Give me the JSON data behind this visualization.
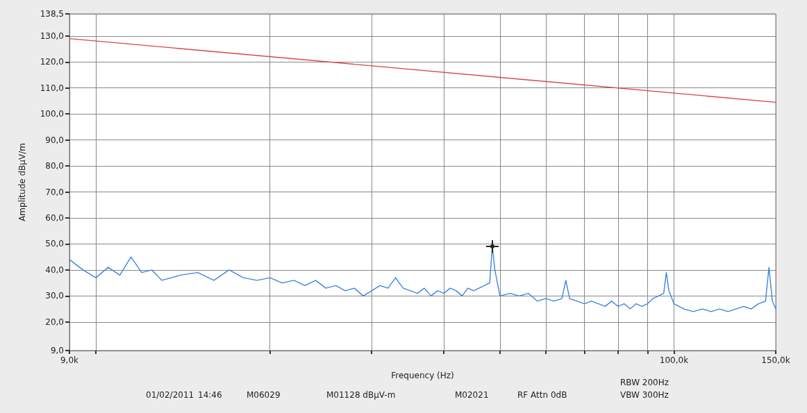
{
  "chart_data": {
    "type": "line",
    "xlabel": "Frequency (Hz)",
    "ylabel": "Amplitude dBµV/m",
    "log": "x",
    "grid": true,
    "marker": "none",
    "line_style": "solid",
    "xlim": [
      9000,
      150000
    ],
    "xticks": [
      {
        "value": 9000,
        "label": "9,0k"
      },
      {
        "value": 10000,
        "label": null
      },
      {
        "value": 20000,
        "label": null
      },
      {
        "value": 30000,
        "label": null
      },
      {
        "value": 40000,
        "label": null
      },
      {
        "value": 50000,
        "label": null
      },
      {
        "value": 60000,
        "label": null
      },
      {
        "value": 70000,
        "label": null
      },
      {
        "value": 80000,
        "label": null
      },
      {
        "value": 90000,
        "label": null
      },
      {
        "value": 100000,
        "label": "100,0k"
      },
      {
        "value": 150000,
        "label": "150,0k"
      }
    ],
    "ylim": [
      9,
      138.5
    ],
    "yticks": [
      {
        "value": 9,
        "label": "9,0"
      },
      {
        "value": 20,
        "label": "20,0"
      },
      {
        "value": 30,
        "label": "30,0"
      },
      {
        "value": 40,
        "label": "40,0"
      },
      {
        "value": 50,
        "label": "50,0"
      },
      {
        "value": 60,
        "label": "60,0"
      },
      {
        "value": 70,
        "label": "70,0"
      },
      {
        "value": 80,
        "label": "80,0"
      },
      {
        "value": 90,
        "label": "90,0"
      },
      {
        "value": 100,
        "label": "100,0"
      },
      {
        "value": 110,
        "label": "110,0"
      },
      {
        "value": 120,
        "label": "120,0"
      },
      {
        "value": 130,
        "label": "130,0"
      },
      {
        "value": 138.5,
        "label": "138,5"
      }
    ],
    "annotations": [
      "RBW 200Hz",
      "01/02/2011",
      "14:46",
      "M06029",
      "M01128 dBµV-m",
      "M02021",
      "RF Attn 0dB",
      "VBW 300Hz"
    ],
    "series": [
      {
        "color": "#d9464a",
        "x": [
          9000,
          150000
        ],
        "values": [
          129,
          104.5
        ]
      },
      {
        "color": "#3d85e0",
        "x": [
          9000,
          9500,
          10000,
          10500,
          11000,
          11500,
          12000,
          12500,
          13000,
          14000,
          15000,
          16000,
          17000,
          18000,
          19000,
          20000,
          21000,
          22000,
          23000,
          24000,
          25000,
          26000,
          27000,
          28000,
          29000,
          30000,
          31000,
          32000,
          33000,
          34000,
          35000,
          36000,
          37000,
          38000,
          39000,
          40000,
          41000,
          42000,
          43000,
          44000,
          45000,
          46000,
          47000,
          48000,
          48500,
          49000,
          50000,
          52000,
          54000,
          56000,
          58000,
          60000,
          62000,
          64000,
          65000,
          66000,
          68000,
          70000,
          72000,
          74000,
          76000,
          78000,
          80000,
          82000,
          84000,
          86000,
          88000,
          90000,
          92000,
          94000,
          96000,
          97000,
          98000,
          100000,
          104000,
          108000,
          112000,
          116000,
          120000,
          124000,
          128000,
          132000,
          136000,
          140000,
          144000,
          146000,
          148000,
          150000
        ],
        "values": [
          44,
          40,
          37,
          41,
          38,
          45,
          39,
          40,
          36,
          38,
          39,
          36,
          40,
          37,
          36,
          37,
          35,
          36,
          34,
          36,
          33,
          34,
          32,
          33,
          30,
          32,
          34,
          33,
          37,
          33,
          32,
          31,
          33,
          30,
          32,
          31,
          33,
          32,
          30,
          33,
          32,
          33,
          34,
          35,
          49,
          40,
          30,
          31,
          30,
          31,
          28,
          29,
          28,
          29,
          36,
          29,
          28,
          27,
          28,
          27,
          26,
          28,
          26,
          27,
          25,
          27,
          26,
          27,
          29,
          30,
          31,
          39,
          32,
          27,
          25,
          24,
          25,
          24,
          25,
          24,
          25,
          26,
          25,
          27,
          28,
          41,
          28,
          25
        ]
      }
    ]
  }
}
